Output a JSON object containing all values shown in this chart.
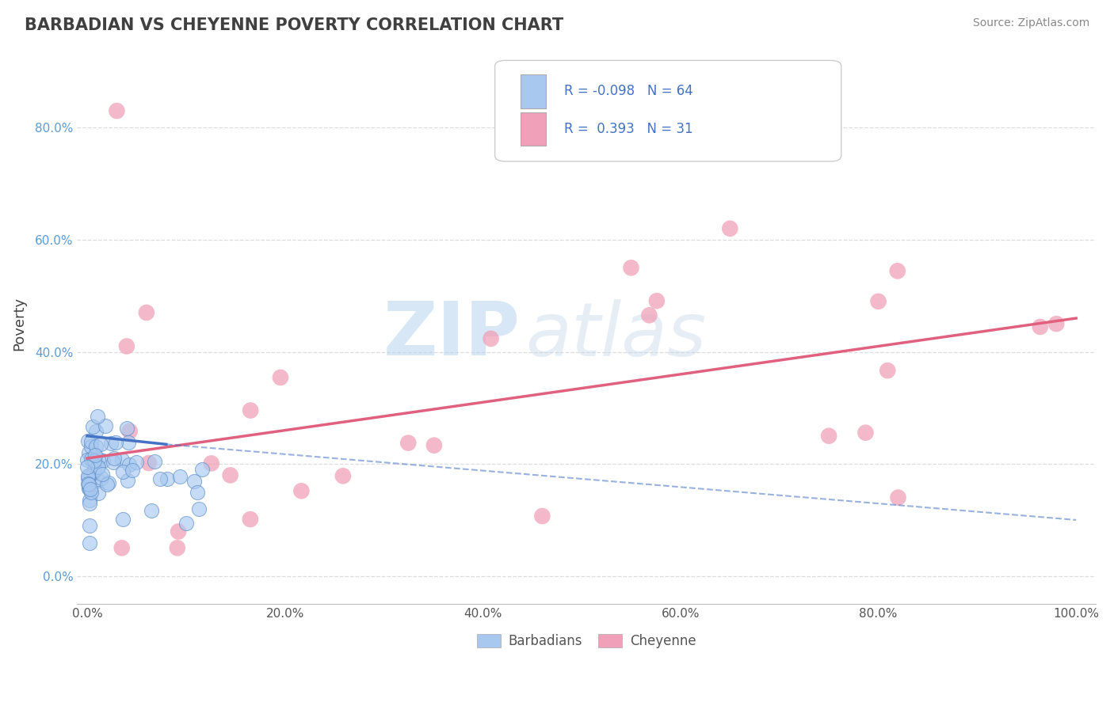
{
  "title": "BARBADIAN VS CHEYENNE POVERTY CORRELATION CHART",
  "source": "Source: ZipAtlas.com",
  "ylabel": "Poverty",
  "legend_r_blue": "-0.098",
  "legend_n_blue": "64",
  "legend_r_pink": "0.393",
  "legend_n_pink": "31",
  "blue_color": "#a8c8f0",
  "pink_color": "#f0a0b8",
  "blue_line_color": "#4472C4",
  "pink_line_color": "#E06080",
  "blue_edge_color": "#6090c8",
  "watermark_text": "ZIP",
  "watermark_text2": "atlas",
  "xlim": [
    -1,
    102
  ],
  "ylim": [
    -5,
    95
  ],
  "xticks": [
    0,
    20,
    40,
    60,
    80,
    100
  ],
  "yticks": [
    0,
    20,
    40,
    60,
    80
  ],
  "grid_color": "#dddddd",
  "pink_trend_x0": 0,
  "pink_trend_x1": 100,
  "pink_trend_y0": 21,
  "pink_trend_y1": 46,
  "blue_solid_x0": 0,
  "blue_solid_x1": 8,
  "blue_solid_y0": 25,
  "blue_solid_y1": 23.5,
  "blue_dash_x0": 8,
  "blue_dash_x1": 100,
  "blue_dash_y0": 23.5,
  "blue_dash_y1": 10
}
